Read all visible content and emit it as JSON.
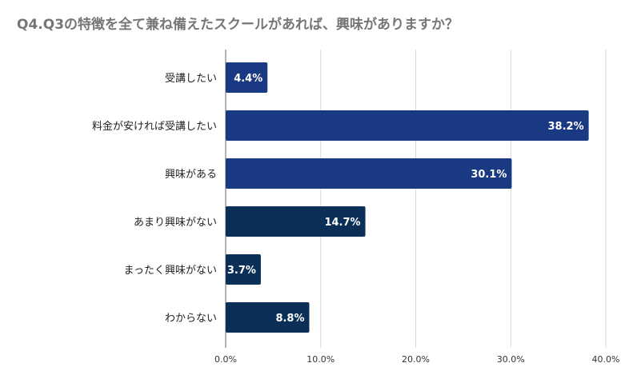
{
  "chart_data": {
    "type": "bar",
    "orientation": "horizontal",
    "title": "Q4.Q3の特徴を全て兼ね備えたスクールがあれば、興味がありますか？",
    "categories": [
      "受講したい",
      "料金が安ければ受講したい",
      "興味がある",
      "あまり興味がない",
      "まったく興味がない",
      "わからない"
    ],
    "values": [
      4.4,
      38.2,
      30.1,
      14.7,
      3.7,
      8.8
    ],
    "value_labels": [
      "4.4%",
      "38.2%",
      "30.1%",
      "14.7%",
      "3.7%",
      "8.8%"
    ],
    "bar_colors": [
      "#193a82",
      "#193a82",
      "#193a82",
      "#0b2f57",
      "#0b2f57",
      "#0b2f57"
    ],
    "x_ticks": [
      0,
      10,
      20,
      30,
      40
    ],
    "x_tick_labels": [
      "0.0%",
      "10.0%",
      "20.0%",
      "30.0%",
      "40.0%"
    ],
    "xlim": [
      0,
      40
    ],
    "xlabel": "",
    "ylabel": "",
    "grid": true,
    "legend": "none"
  }
}
